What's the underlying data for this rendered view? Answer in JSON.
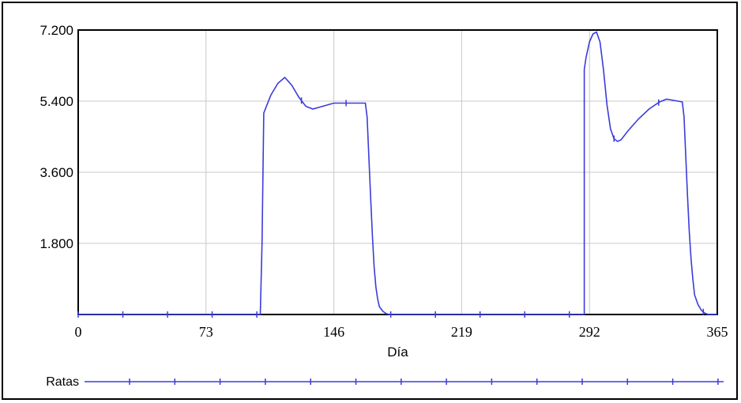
{
  "chart_data": {
    "type": "line",
    "title": "",
    "xlabel": "Día",
    "ylabel": "",
    "xlim": [
      0,
      365
    ],
    "ylim": [
      0,
      7200
    ],
    "x_ticks": [
      0,
      73,
      146,
      219,
      292,
      365
    ],
    "x_tick_labels": [
      "0",
      "73",
      "146",
      "219",
      "292",
      "365"
    ],
    "y_ticks": [
      1800,
      3600,
      5400,
      7200
    ],
    "y_tick_labels": [
      "1.800",
      "3.600",
      "5.400",
      "7.200"
    ],
    "grid": true,
    "legend": "bottom",
    "series": [
      {
        "name": "Ratas",
        "color": "#3b3bdb",
        "x": [
          0,
          104,
          105,
          106,
          110,
          114,
          118,
          122,
          126,
          130,
          134,
          138,
          146,
          155,
          164,
          165,
          166,
          167,
          168,
          169,
          170,
          171,
          172,
          174,
          176,
          178,
          180,
          185,
          200,
          219,
          250,
          280,
          289,
          289,
          290,
          292,
          294,
          296,
          298,
          300,
          302,
          304,
          306,
          308,
          310,
          314,
          320,
          326,
          332,
          336,
          340,
          345,
          346,
          347,
          348,
          349,
          350,
          351,
          352,
          354,
          356,
          358,
          360,
          362,
          365
        ],
        "y": [
          0,
          0,
          1800,
          5100,
          5550,
          5850,
          6000,
          5800,
          5500,
          5270,
          5200,
          5250,
          5350,
          5350,
          5350,
          5000,
          4000,
          3000,
          2000,
          1200,
          700,
          400,
          200,
          80,
          20,
          0,
          0,
          0,
          0,
          0,
          0,
          0,
          0,
          6200,
          6500,
          6900,
          7100,
          7150,
          6900,
          6200,
          5300,
          4700,
          4450,
          4380,
          4420,
          4650,
          4950,
          5200,
          5380,
          5450,
          5420,
          5380,
          5000,
          4000,
          3000,
          2100,
          1400,
          900,
          500,
          250,
          100,
          30,
          0,
          0,
          0
        ]
      }
    ]
  }
}
